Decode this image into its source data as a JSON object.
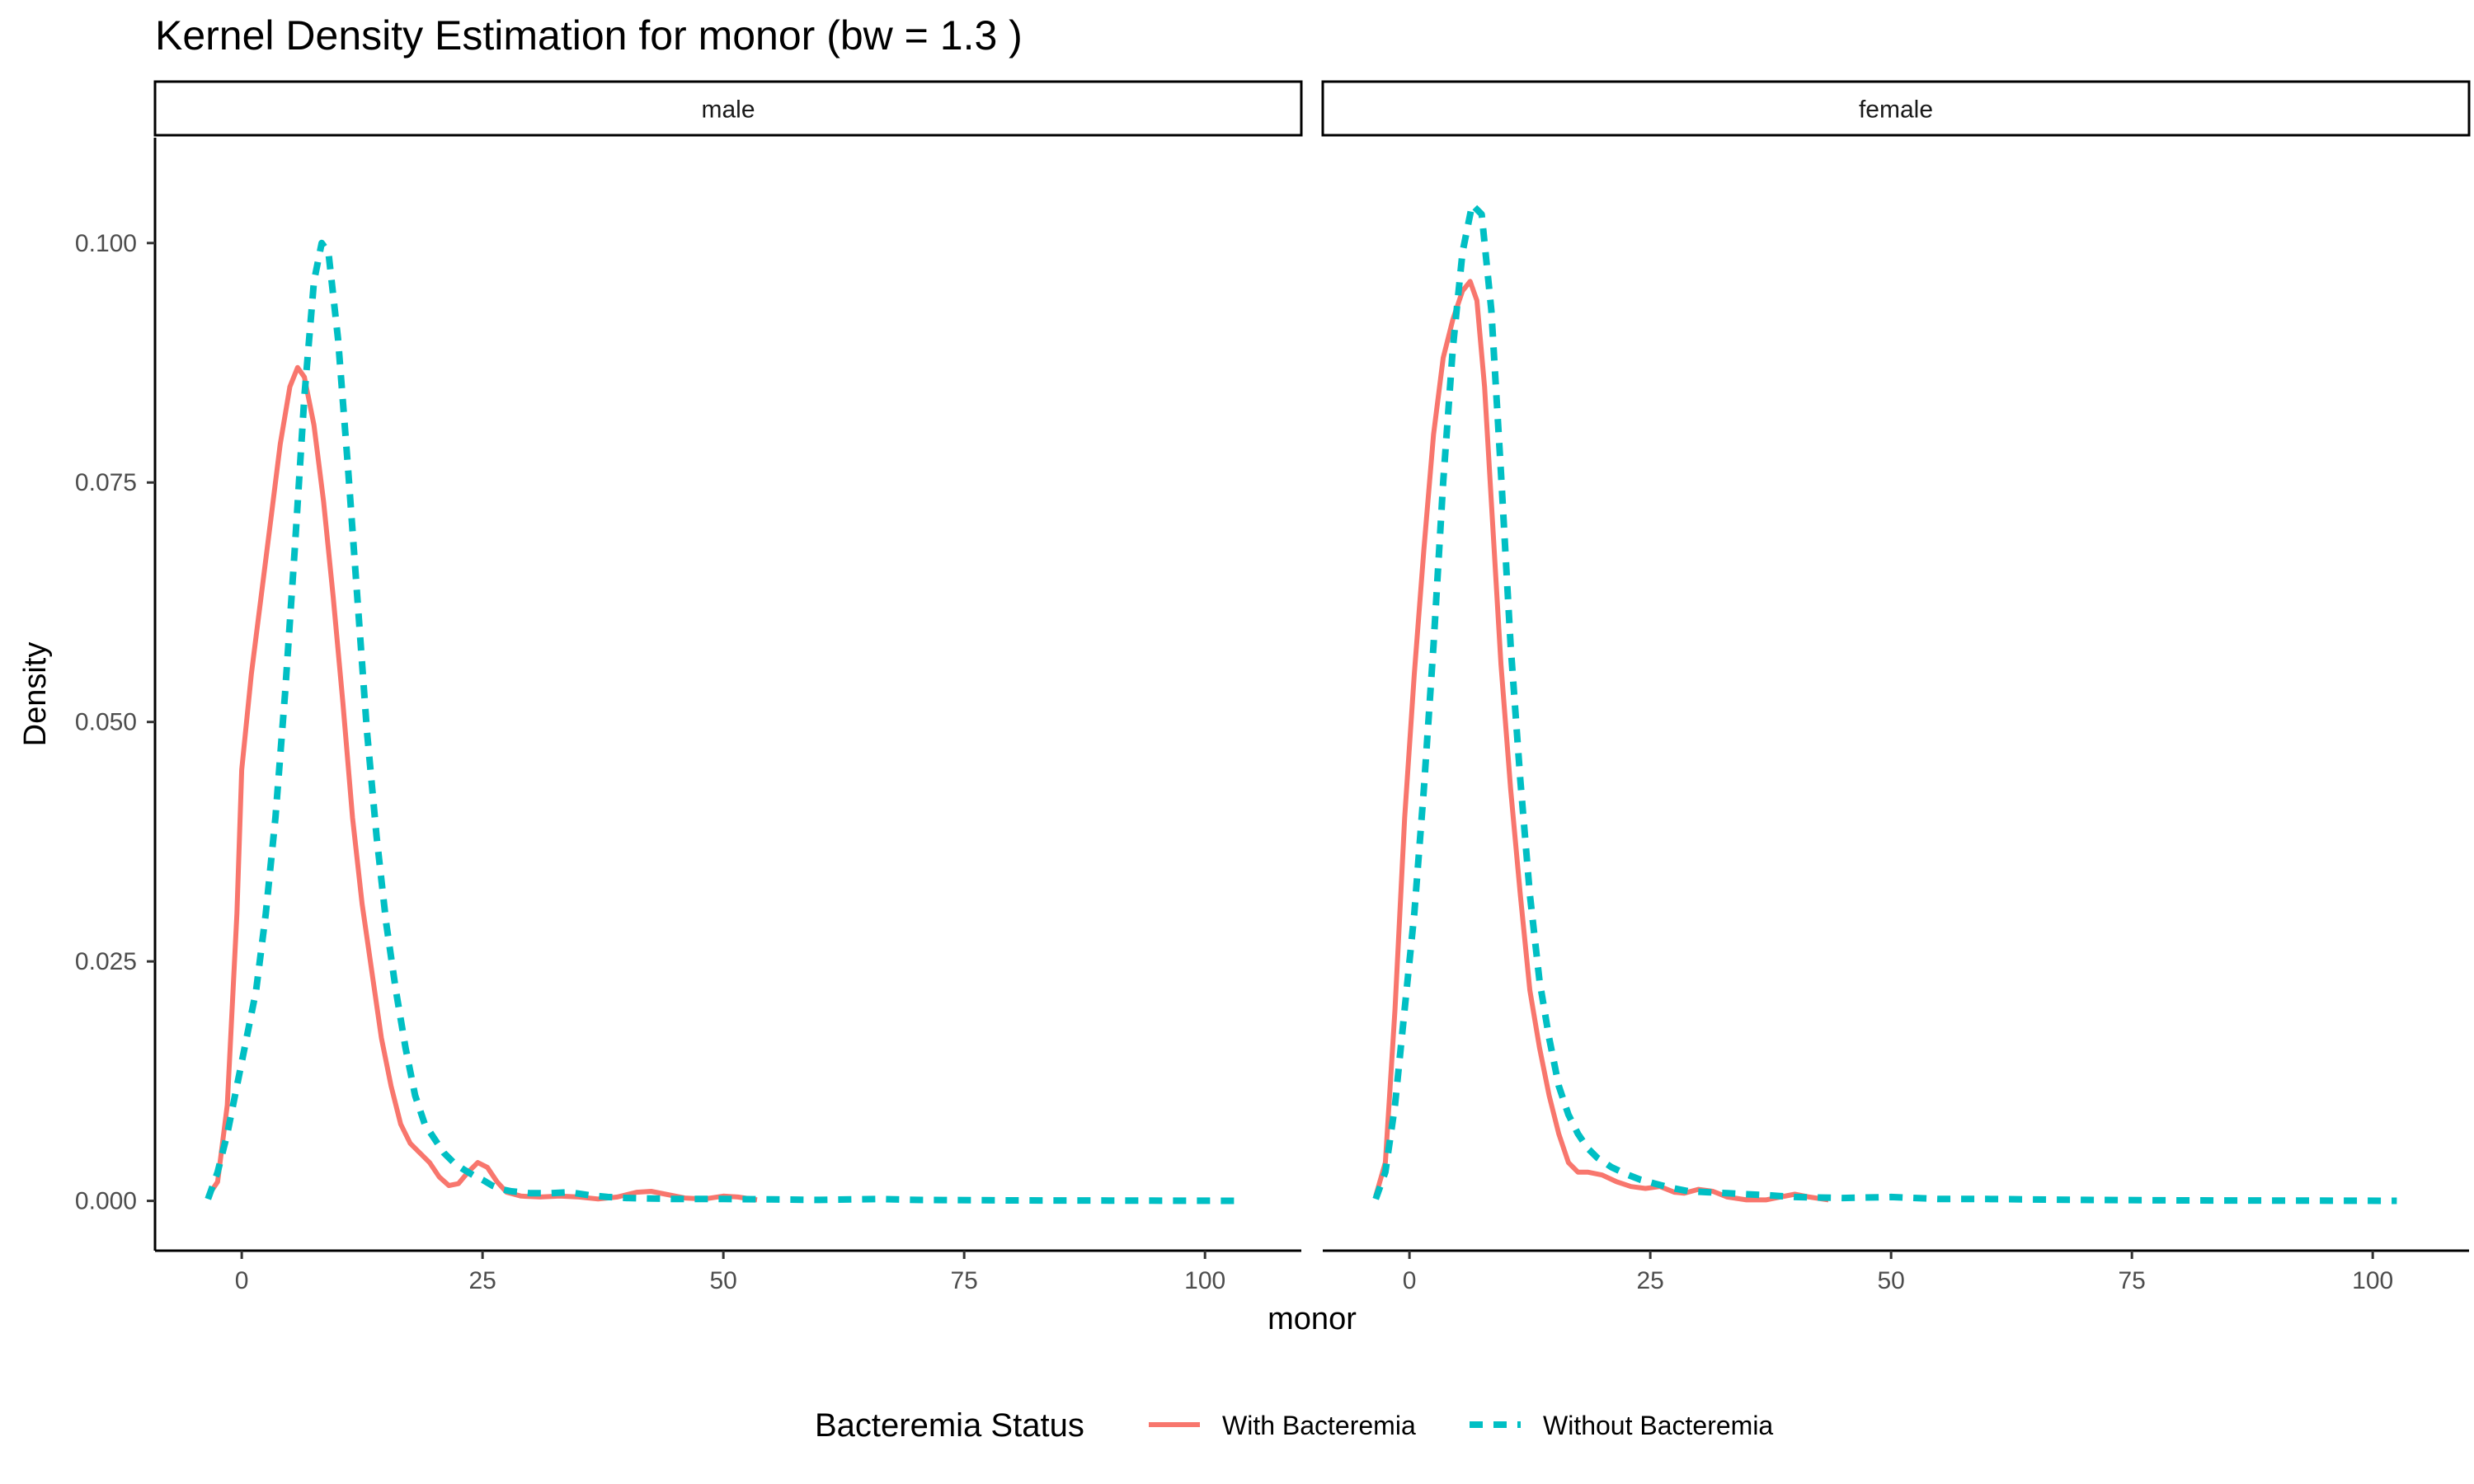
{
  "chart_data": {
    "type": "line",
    "title": "Kernel Density Estimation for monor (bw = 1.3 )",
    "xlabel": "monor",
    "ylabel": "Density",
    "xlim": [
      -9,
      110
    ],
    "ylim": [
      -0.0052,
      0.111
    ],
    "x_ticks": [
      0,
      25,
      50,
      75,
      100
    ],
    "y_ticks": [
      0.0,
      0.025,
      0.05,
      0.075,
      0.1
    ],
    "x_tick_labels": [
      "0",
      "25",
      "50",
      "75",
      "100"
    ],
    "y_tick_labels": [
      "0.000",
      "0.025",
      "0.050",
      "0.075",
      "0.100"
    ],
    "grid": false,
    "legend": {
      "title": "Bacteremia Status",
      "position": "bottom",
      "entries": [
        {
          "label": "With Bacteremia",
          "color": "#F8766D",
          "dash": "solid"
        },
        {
          "label": "Without Bacteremia",
          "color": "#00BFC4",
          "dash": "dashed"
        }
      ]
    },
    "panels": [
      {
        "label": "male",
        "series": [
          {
            "name": "With Bacteremia",
            "color": "#F8766D",
            "points": [
              [
                -3.5,
                0.0005
              ],
              [
                -2.5,
                0.002
              ],
              [
                -1.5,
                0.01
              ],
              [
                -0.5,
                0.03
              ],
              [
                0,
                0.045
              ],
              [
                1,
                0.055
              ],
              [
                2,
                0.063
              ],
              [
                3,
                0.071
              ],
              [
                4,
                0.079
              ],
              [
                5,
                0.085
              ],
              [
                5.8,
                0.087
              ],
              [
                6.5,
                0.086
              ],
              [
                7.5,
                0.081
              ],
              [
                8.5,
                0.073
              ],
              [
                9.5,
                0.063
              ],
              [
                10.5,
                0.052
              ],
              [
                11.5,
                0.04
              ],
              [
                12.5,
                0.031
              ],
              [
                13.5,
                0.024
              ],
              [
                14.5,
                0.017
              ],
              [
                15.5,
                0.012
              ],
              [
                16.5,
                0.008
              ],
              [
                17.5,
                0.006
              ],
              [
                18.5,
                0.005
              ],
              [
                19.5,
                0.004
              ],
              [
                20.5,
                0.0025
              ],
              [
                21.5,
                0.0016
              ],
              [
                22.5,
                0.0018
              ],
              [
                23.5,
                0.003
              ],
              [
                24.5,
                0.004
              ],
              [
                25.5,
                0.0035
              ],
              [
                26.5,
                0.002
              ],
              [
                27.5,
                0.0009
              ],
              [
                29,
                0.0005
              ],
              [
                31,
                0.0004
              ],
              [
                33,
                0.0005
              ],
              [
                35,
                0.0004
              ],
              [
                37,
                0.0002
              ],
              [
                39,
                0.0004
              ],
              [
                41,
                0.0009
              ],
              [
                42.5,
                0.001
              ],
              [
                44,
                0.0007
              ],
              [
                46,
                0.0003
              ],
              [
                48,
                0.0002
              ],
              [
                50,
                0.0005
              ],
              [
                51.5,
                0.0004
              ],
              [
                53.5,
                0.0001
              ]
            ]
          },
          {
            "name": "Without Bacteremia",
            "color": "#00BFC4",
            "points": [
              [
                -3.5,
                0.0002
              ],
              [
                -2.5,
                0.003
              ],
              [
                -1.5,
                0.007
              ],
              [
                -0.5,
                0.012
              ],
              [
                0.5,
                0.017
              ],
              [
                1.5,
                0.022
              ],
              [
                2.5,
                0.03
              ],
              [
                3.5,
                0.04
              ],
              [
                4.5,
                0.053
              ],
              [
                5.5,
                0.068
              ],
              [
                6.5,
                0.084
              ],
              [
                7.5,
                0.096
              ],
              [
                8.3,
                0.1
              ],
              [
                9,
                0.099
              ],
              [
                10,
                0.09
              ],
              [
                11,
                0.077
              ],
              [
                12,
                0.063
              ],
              [
                13,
                0.049
              ],
              [
                14,
                0.038
              ],
              [
                15,
                0.029
              ],
              [
                16,
                0.022
              ],
              [
                17,
                0.016
              ],
              [
                18,
                0.011
              ],
              [
                19,
                0.008
              ],
              [
                20,
                0.0065
              ],
              [
                21,
                0.005
              ],
              [
                22,
                0.004
              ],
              [
                23,
                0.0033
              ],
              [
                24,
                0.0027
              ],
              [
                25,
                0.0022
              ],
              [
                26,
                0.0016
              ],
              [
                27,
                0.0012
              ],
              [
                28,
                0.001
              ],
              [
                30,
                0.0008
              ],
              [
                32,
                0.0008
              ],
              [
                34,
                0.0009
              ],
              [
                36,
                0.0006
              ],
              [
                38,
                0.0004
              ],
              [
                40,
                0.0003
              ],
              [
                45,
                0.0002
              ],
              [
                50,
                0.0002
              ],
              [
                55,
                0.00015
              ],
              [
                60,
                0.0001
              ],
              [
                66,
                0.0002
              ],
              [
                70,
                0.0001
              ],
              [
                80,
                5e-05
              ],
              [
                90,
                3e-05
              ],
              [
                104,
                1e-05
              ]
            ]
          }
        ]
      },
      {
        "label": "female",
        "series": [
          {
            "name": "With Bacteremia",
            "color": "#F8766D",
            "points": [
              [
                -3.5,
                0.0005
              ],
              [
                -2.5,
                0.004
              ],
              [
                -1.5,
                0.02
              ],
              [
                -0.5,
                0.04
              ],
              [
                0.5,
                0.055
              ],
              [
                1.5,
                0.068
              ],
              [
                2.5,
                0.08
              ],
              [
                3.5,
                0.088
              ],
              [
                4.5,
                0.092
              ],
              [
                5.5,
                0.095
              ],
              [
                6.3,
                0.096
              ],
              [
                7,
                0.094
              ],
              [
                7.8,
                0.085
              ],
              [
                8.5,
                0.073
              ],
              [
                9.5,
                0.056
              ],
              [
                10.5,
                0.043
              ],
              [
                11.5,
                0.032
              ],
              [
                12.5,
                0.022
              ],
              [
                13.5,
                0.016
              ],
              [
                14.5,
                0.011
              ],
              [
                15.5,
                0.007
              ],
              [
                16.5,
                0.004
              ],
              [
                17.5,
                0.003
              ],
              [
                18.5,
                0.003
              ],
              [
                20,
                0.0027
              ],
              [
                21.5,
                0.002
              ],
              [
                23,
                0.0015
              ],
              [
                24.5,
                0.0013
              ],
              [
                26,
                0.0015
              ],
              [
                27.5,
                0.0009
              ],
              [
                28.5,
                0.0008
              ],
              [
                30,
                0.0012
              ],
              [
                31.5,
                0.001
              ],
              [
                33,
                0.0004
              ],
              [
                35,
                0.0001
              ],
              [
                37,
                0.0001
              ],
              [
                38.5,
                0.0004
              ],
              [
                40,
                0.0007
              ],
              [
                41.5,
                0.0004
              ],
              [
                43.5,
                0.0001
              ]
            ]
          },
          {
            "name": "Without Bacteremia",
            "color": "#00BFC4",
            "points": [
              [
                -3.5,
                0.0002
              ],
              [
                -2.5,
                0.003
              ],
              [
                -1.5,
                0.01
              ],
              [
                -0.5,
                0.02
              ],
              [
                0.5,
                0.03
              ],
              [
                1.5,
                0.043
              ],
              [
                2.5,
                0.058
              ],
              [
                3.5,
                0.075
              ],
              [
                4.5,
                0.089
              ],
              [
                5.5,
                0.099
              ],
              [
                6.5,
                0.104
              ],
              [
                7.5,
                0.103
              ],
              [
                8.5,
                0.093
              ],
              [
                9.5,
                0.076
              ],
              [
                10.5,
                0.058
              ],
              [
                11.5,
                0.044
              ],
              [
                12.5,
                0.032
              ],
              [
                13.5,
                0.023
              ],
              [
                14.5,
                0.017
              ],
              [
                15.5,
                0.012
              ],
              [
                16.5,
                0.009
              ],
              [
                17.5,
                0.007
              ],
              [
                18.5,
                0.0055
              ],
              [
                19.5,
                0.0045
              ],
              [
                21,
                0.0035
              ],
              [
                22.5,
                0.0028
              ],
              [
                24,
                0.0022
              ],
              [
                25.5,
                0.0018
              ],
              [
                27,
                0.0014
              ],
              [
                29,
                0.001
              ],
              [
                31,
                0.0009
              ],
              [
                33,
                0.0008
              ],
              [
                35,
                0.0007
              ],
              [
                37,
                0.0006
              ],
              [
                40,
                0.0004
              ],
              [
                45,
                0.0003
              ],
              [
                50,
                0.0004
              ],
              [
                55,
                0.0002
              ],
              [
                60,
                0.0002
              ],
              [
                70,
                0.0001
              ],
              [
                80,
                5e-05
              ],
              [
                90,
                3e-05
              ],
              [
                102.5,
                1e-05
              ]
            ]
          }
        ]
      }
    ]
  }
}
